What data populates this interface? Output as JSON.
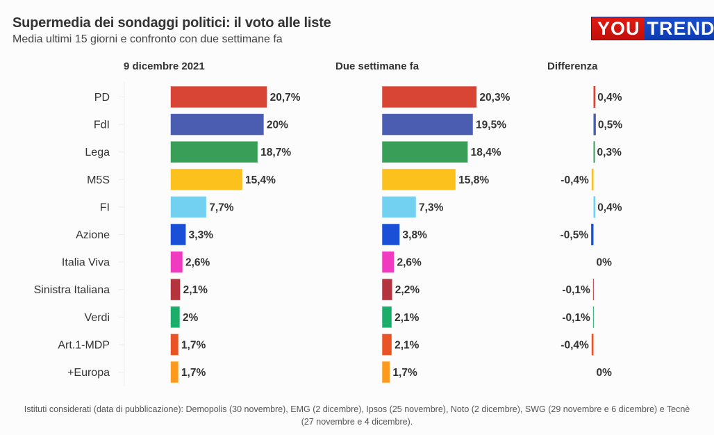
{
  "header": {
    "title": "Supermedia dei sondaggi politici: il voto alle liste",
    "subtitle": "Media ultimi 15 giorni e confronto con due settimane fa",
    "logo_left": "YOU",
    "logo_right": "TREND"
  },
  "columns": {
    "current": "9 dicembre 2021",
    "previous": "Due settimane fa",
    "difference": "Differenza"
  },
  "footer": {
    "line1": "Istituti considerati (data di pubblicazione): Demopolis (30 novembre), EMG (2 dicembre), Ipsos (25 novembre), Noto (2 dicembre), SWG (29 novembre e 6 dicembre) e Tecnè",
    "line2": "(27 novembre e 4 dicembre)."
  },
  "chart_data": {
    "type": "bar",
    "orientation": "horizontal",
    "title": "Supermedia dei sondaggi politici: il voto alle liste",
    "subtitle": "Media ultimi 15 giorni e confronto con due settimane fa",
    "categories": [
      "PD",
      "FdI",
      "Lega",
      "M5S",
      "FI",
      "Azione",
      "Italia Viva",
      "Sinistra Italiana",
      "Verdi",
      "Art.1-MDP",
      "+Europa"
    ],
    "colors": [
      "#d94535",
      "#4a5db0",
      "#399f58",
      "#fdc11e",
      "#72d0f0",
      "#1a4fd8",
      "#f03ac0",
      "#b3343d",
      "#1bae6a",
      "#ea5325",
      "#fd9a1e"
    ],
    "series": [
      {
        "name": "9 dicembre 2021",
        "values": [
          20.7,
          20,
          18.7,
          15.4,
          7.7,
          3.3,
          2.6,
          2.1,
          2,
          1.7,
          1.7
        ],
        "labels": [
          "20,7%",
          "20%",
          "18,7%",
          "15,4%",
          "7,7%",
          "3,3%",
          "2,6%",
          "2,1%",
          "2%",
          "1,7%",
          "1,7%"
        ]
      },
      {
        "name": "Due settimane fa",
        "values": [
          20.3,
          19.5,
          18.4,
          15.8,
          7.3,
          3.8,
          2.6,
          2.2,
          2.1,
          2.1,
          1.7
        ],
        "labels": [
          "20,3%",
          "19,5%",
          "18,4%",
          "15,8%",
          "7,3%",
          "3,8%",
          "2,6%",
          "2,2%",
          "2,1%",
          "2,1%",
          "1,7%"
        ]
      },
      {
        "name": "Differenza",
        "values": [
          0.4,
          0.5,
          0.3,
          -0.4,
          0.4,
          -0.5,
          0,
          -0.1,
          -0.1,
          -0.4,
          0
        ],
        "labels": [
          "0,4%",
          "0,5%",
          "0,3%",
          "-0,4%",
          "0,4%",
          "-0,5%",
          "0%",
          "-0,1%",
          "-0,1%",
          "-0,4%",
          "0%"
        ]
      }
    ],
    "xlabel": "",
    "ylabel": "",
    "unit": "%",
    "grid": false,
    "legend": "none"
  }
}
